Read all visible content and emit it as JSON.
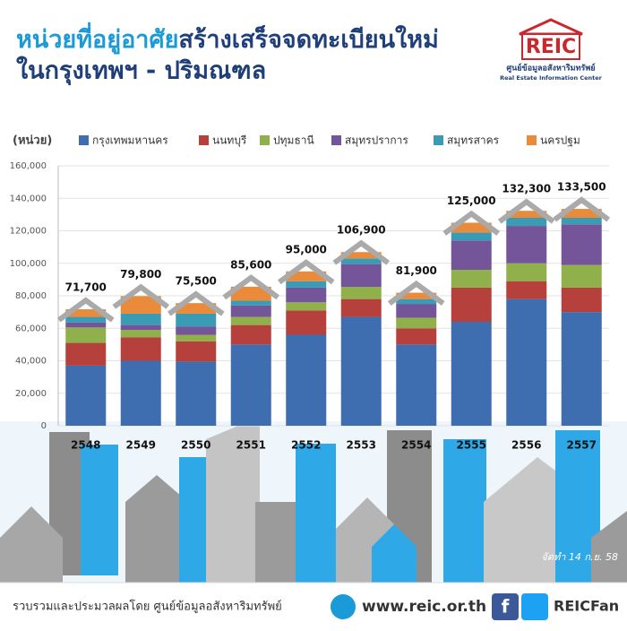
{
  "header": {
    "title_part1": "หน่วยที่อยู่อาศัย",
    "title_part2": "สร้างเสร็จจดทะเบียนใหม่",
    "title_line2": "ในกรุงเทพฯ - ปริมณฑล",
    "logo": "REIC",
    "logo_thai": "ศูนย์ข้อมูลอสังหาริมทรัพย์",
    "logo_english": "Real Estate Information Center"
  },
  "chart_data": {
    "type": "stacked_bar",
    "ylabel": "(หน่วย)",
    "categories": [
      "2548",
      "2549",
      "2550",
      "2551",
      "2552",
      "2553",
      "2554",
      "2555",
      "2556",
      "2557"
    ],
    "series": [
      {
        "name": "กรุงเทพมหานคร",
        "color": "#3f6eb0",
        "values": [
          37000,
          40000,
          39500,
          50000,
          56000,
          67000,
          50000,
          64000,
          78000,
          70000
        ]
      },
      {
        "name": "นนทบุรี",
        "color": "#b5403c",
        "values": [
          14000,
          14500,
          12500,
          12000,
          15000,
          11000,
          10000,
          21000,
          11000,
          15000
        ]
      },
      {
        "name": "ปทุมธานี",
        "color": "#8fb04a",
        "values": [
          9500,
          4500,
          4000,
          5000,
          5000,
          7500,
          6500,
          11000,
          11000,
          14000
        ]
      },
      {
        "name": "สมุทรปราการ",
        "color": "#75559a",
        "values": [
          3000,
          3000,
          5000,
          7000,
          9000,
          14000,
          8500,
          18000,
          23000,
          25000
        ]
      },
      {
        "name": "สมุทรสาคร",
        "color": "#3c9bb4",
        "values": [
          3500,
          7000,
          8000,
          3000,
          4000,
          3500,
          3000,
          5000,
          5000,
          4000
        ]
      },
      {
        "name": "นครปฐม",
        "color": "#e98b3a",
        "values": [
          4700,
          10800,
          6500,
          8600,
          6000,
          3900,
          3900,
          6000,
          4300,
          5500
        ]
      }
    ],
    "totals": [
      71700,
      79800,
      75500,
      85600,
      95000,
      106900,
      81900,
      125000,
      132300,
      133500
    ],
    "total_labels": [
      "71,700",
      "79,800",
      "75,500",
      "85,600",
      "95,000",
      "106,900",
      "81,900",
      "125,000",
      "132,300",
      "133,500"
    ],
    "ylim": [
      0,
      160000
    ],
    "yticks": [
      0,
      {
        "value": 20000,
        "label": "20,000"
      },
      {
        "value": 40000,
        "label": "40,000"
      },
      {
        "value": 60000,
        "label": "60,000"
      },
      {
        "value": 80000,
        "label": "80,000"
      },
      {
        "value": 100000,
        "label": "100,000"
      },
      {
        "value": 120000,
        "label": "120,000"
      },
      {
        "value": 140000,
        "label": "140,000"
      },
      {
        "value": 160000,
        "label": "160,000"
      }
    ],
    "grid": true
  },
  "footer": {
    "date_note": "จัดทำ 14 ก.ย. 58",
    "credit": "รวบรวมและประมวลผลโดย ศูนย์ข้อมูลอสังหาริมทรัพย์",
    "website": "www.reic.or.th",
    "social": "REICFan"
  }
}
